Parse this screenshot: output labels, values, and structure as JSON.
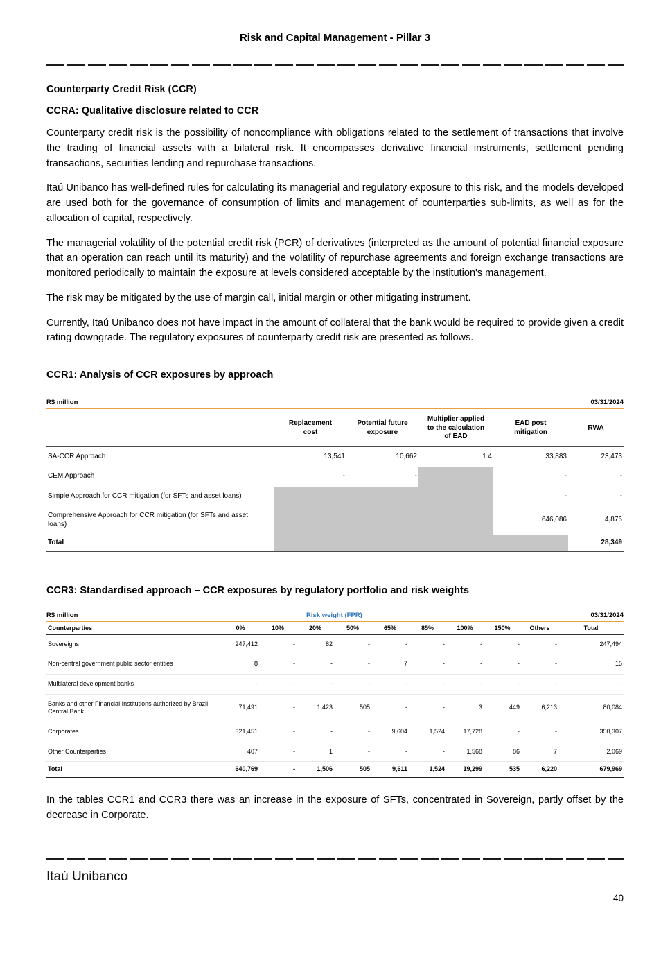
{
  "header": {
    "title": "Risk and Capital Management - Pillar 3"
  },
  "body": {
    "ccr_heading": "Counterparty Credit Risk (CCR)",
    "ccra_heading": "CCRA: Qualitative disclosure related to CCR",
    "paragraphs": [
      "Counterparty credit risk is the possibility of noncompliance with obligations related to the settlement of transactions that involve the trading of financial assets with a bilateral risk. It encompasses derivative financial instruments, settlement pending transactions, securities lending and repurchase transactions.",
      "Itaú Unibanco has well-defined rules for calculating its managerial and regulatory exposure to this risk, and the models developed are used both for the governance of consumption of limits and management of counterparties sub-limits, as well as for the allocation of capital, respectively.",
      "The managerial volatility of the potential credit risk (PCR) of derivatives (interpreted as the amount of potential financial exposure that an operation can reach until its maturity) and the volatility of repurchase agreements and foreign exchange transactions are monitored periodically to maintain the exposure at levels considered acceptable by the institution's management.",
      "The risk may be mitigated by the use of margin call, initial margin or other mitigating instrument.",
      "Currently, Itaú Unibanco does not have impact in the amount of collateral that the bank would be required to provide given a credit rating downgrade. The regulatory exposures of counterparty credit risk are presented as follows."
    ],
    "closing": "In the tables CCR1 and CCR3 there was an increase in the exposure of SFTs, concentrated in Sovereign, partly offset by the decrease in Corporate."
  },
  "ccr1": {
    "heading": "CCR1: Analysis of CCR exposures by approach",
    "unit": "R$ million",
    "date": "03/31/2024",
    "columns": [
      "",
      "Replacement cost",
      "Potential future exposure",
      "Multiplier applied to the calculation of EAD",
      "EAD post mitigation",
      "RWA"
    ],
    "rows": [
      {
        "label": "SA-CCR Approach",
        "values": [
          "13,541",
          "10,662",
          "1.4",
          "33,883",
          "23,473"
        ],
        "gray": []
      },
      {
        "label": "CEM Approach",
        "values": [
          "-",
          "-",
          "",
          "-",
          "-"
        ],
        "gray": [
          2
        ]
      },
      {
        "label": "Simple Approach for CCR mitigation (for SFTs and asset loans)",
        "values": [
          "",
          "",
          "",
          "-",
          "-"
        ],
        "gray": [
          0,
          1,
          2
        ]
      },
      {
        "label": "Comprehensive Approach for CCR mitigation (for SFTs and asset loans)",
        "values": [
          "",
          "",
          "",
          "646,086",
          "4,876"
        ],
        "gray": [
          0,
          1,
          2
        ]
      },
      {
        "label": "Total",
        "values": [
          "",
          "",
          "",
          "",
          "28,349"
        ],
        "gray": [
          0,
          1,
          2,
          3
        ],
        "bold": true
      }
    ]
  },
  "ccr3": {
    "heading": "CCR3: Standardised approach – CCR exposures by regulatory portfolio and risk weights",
    "unit": "R$ million",
    "risk_weight_label": "Risk weight (FPR)",
    "date": "03/31/2024",
    "columns": [
      "Counterparties",
      "0%",
      "10%",
      "20%",
      "50%",
      "65%",
      "85%",
      "100%",
      "150%",
      "Others",
      "Total"
    ],
    "rows": [
      {
        "label": "Sovereigns",
        "values": [
          "247,412",
          "-",
          "82",
          "-",
          "-",
          "-",
          "-",
          "-",
          "-",
          "247,494"
        ]
      },
      {
        "label": "Non-central government public sector entities",
        "values": [
          "8",
          "-",
          "-",
          "-",
          "7",
          "-",
          "-",
          "-",
          "-",
          "15"
        ]
      },
      {
        "label": "Multilateral development banks",
        "values": [
          "-",
          "-",
          "-",
          "-",
          "-",
          "-",
          "-",
          "-",
          "-",
          "-"
        ]
      },
      {
        "label": "Banks and other Financial Institutions authorized by Brazil Central Bank",
        "values": [
          "71,491",
          "-",
          "1,423",
          "505",
          "-",
          "-",
          "3",
          "449",
          "6,213",
          "80,084"
        ]
      },
      {
        "label": "Corporates",
        "values": [
          "321,451",
          "-",
          "-",
          "-",
          "9,604",
          "1,524",
          "17,728",
          "-",
          "-",
          "350,307"
        ]
      },
      {
        "label": "Other Counterparties",
        "values": [
          "407",
          "-",
          "1",
          "-",
          "-",
          "-",
          "1,568",
          "86",
          "7",
          "2,069"
        ]
      },
      {
        "label": "Total",
        "values": [
          "640,769",
          "-",
          "1,506",
          "505",
          "9,611",
          "1,524",
          "19,299",
          "535",
          "6,220",
          "679,969"
        ],
        "bold": true
      }
    ]
  },
  "footer": {
    "brand": "Itaú Unibanco",
    "page_number": "40"
  },
  "colors": {
    "accent_orange": "#E8A13D",
    "risk_weight_blue": "#2E74B5",
    "table_gray": "#C6C6C6"
  }
}
